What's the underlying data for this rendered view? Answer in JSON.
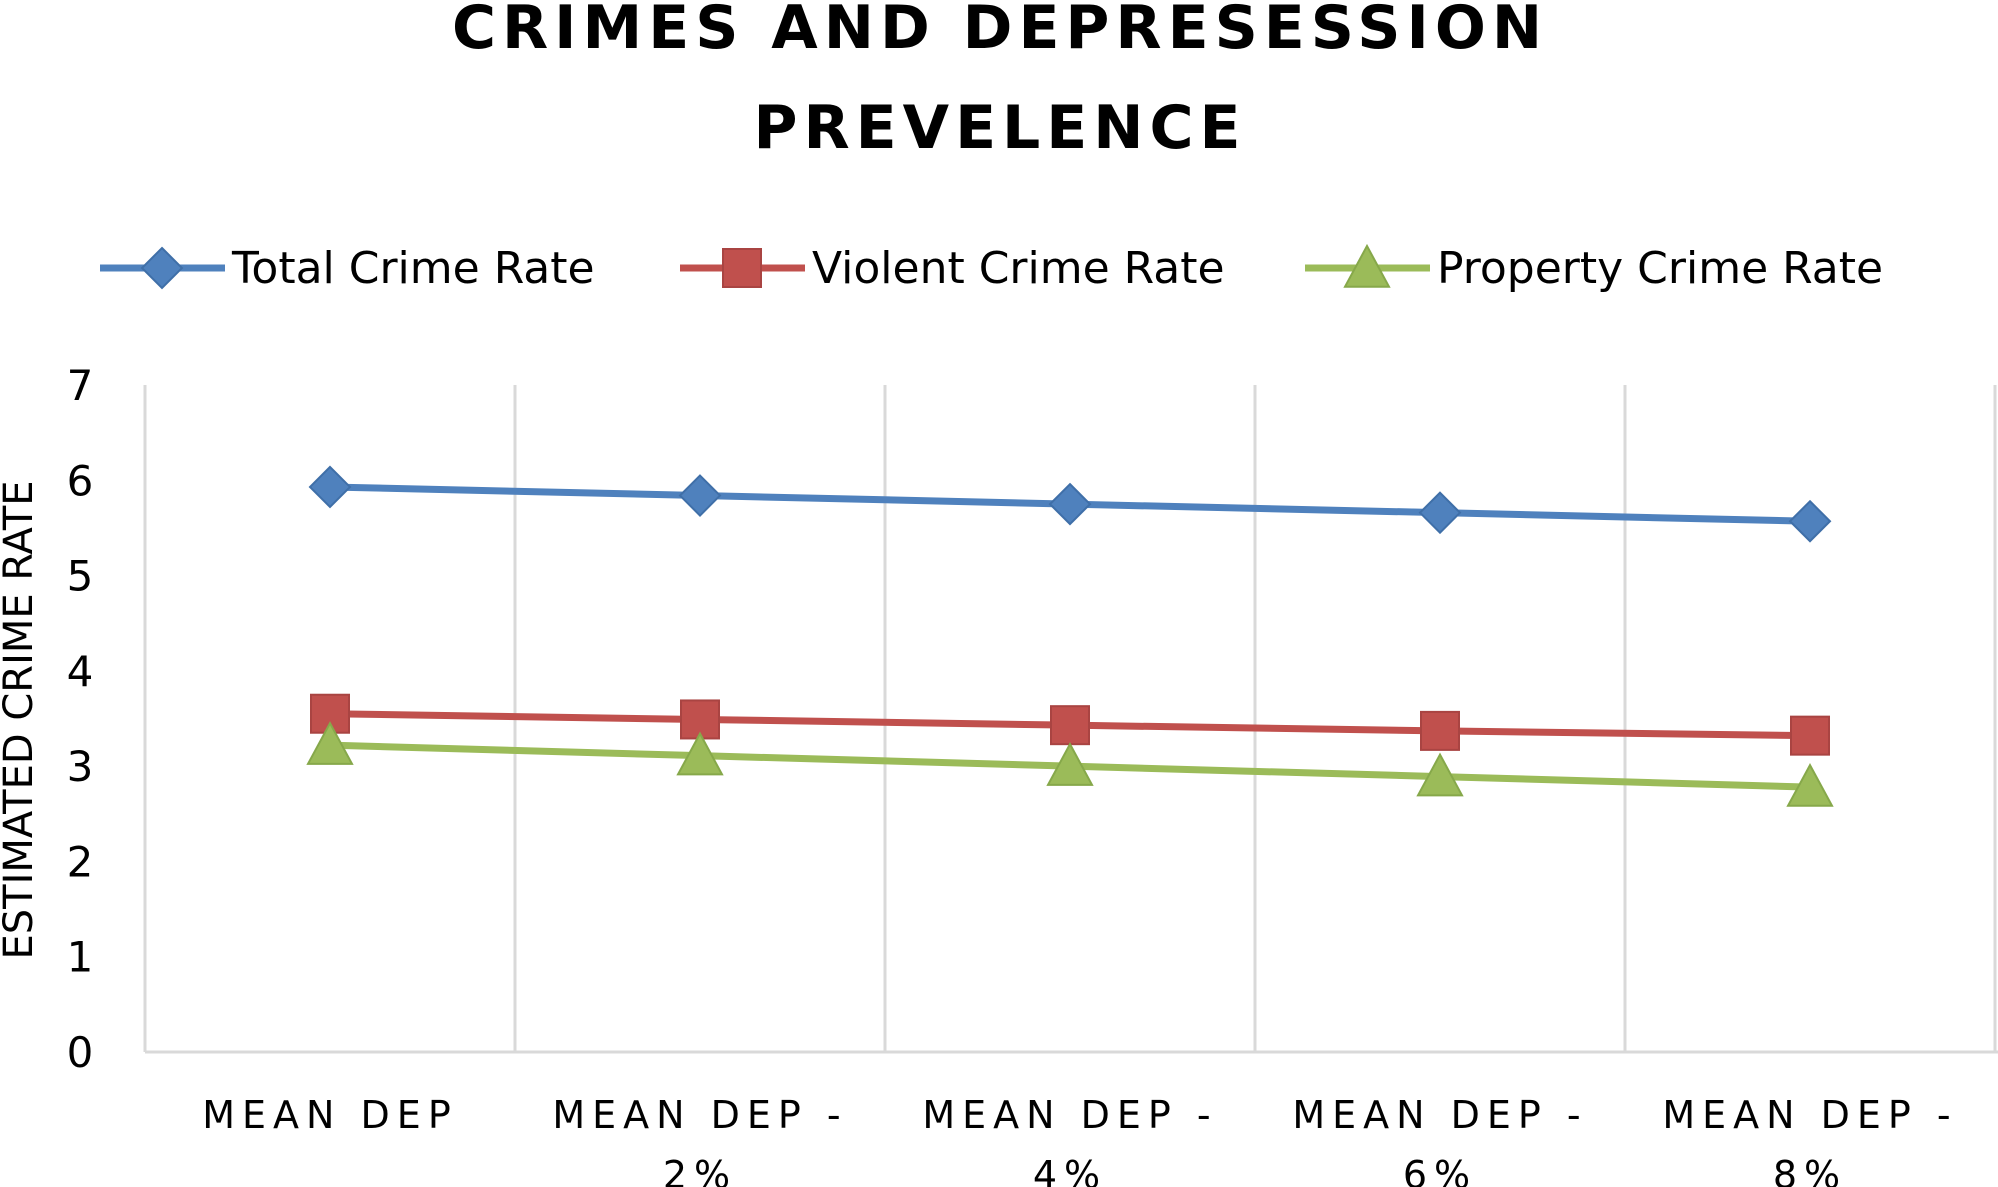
{
  "chart_data": {
    "type": "line",
    "title_lines": [
      "CRIMES AND DEPRESESSION",
      "PREVELENCE"
    ],
    "xlabel": "",
    "ylabel": "ESTIMATED CRIME RATE",
    "categories": [
      [
        "MEAN DEP"
      ],
      [
        "MEAN DEP -",
        "2%"
      ],
      [
        "MEAN DEP -",
        "4%"
      ],
      [
        "MEAN DEP -",
        "6%"
      ],
      [
        "MEAN DEP -",
        "8%"
      ]
    ],
    "ylim": [
      0,
      7
    ],
    "yticks": [
      0,
      1,
      2,
      3,
      4,
      5,
      6,
      7
    ],
    "grid": "vertical",
    "legend_position": "top",
    "series": [
      {
        "name": "Total Crime Rate",
        "marker": "diamond",
        "color": "#4F81BD",
        "values": [
          5.93,
          5.84,
          5.75,
          5.66,
          5.57
        ]
      },
      {
        "name": "Violent Crime Rate",
        "marker": "square",
        "color": "#C0504D",
        "values": [
          3.55,
          3.49,
          3.43,
          3.37,
          3.32
        ]
      },
      {
        "name": "Property Crime Rate",
        "marker": "triangle",
        "color": "#9BBB59",
        "values": [
          3.22,
          3.11,
          3.0,
          2.89,
          2.78
        ]
      }
    ]
  }
}
